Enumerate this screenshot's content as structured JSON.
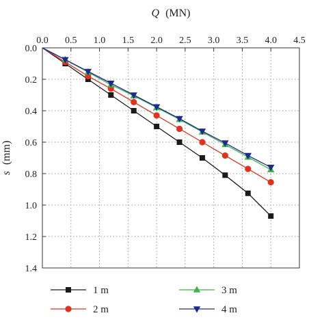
{
  "chart_data": {
    "type": "line",
    "xlabel_var": "Q",
    "xlabel_unit": "(MN)",
    "ylabel_var": "s",
    "ylabel_unit": "(mm)",
    "x_axis_position": "top",
    "y_axis_inverted": true,
    "xlim": [
      0,
      4.5
    ],
    "ylim": [
      0,
      1.4
    ],
    "xticks": [
      "0.0",
      "0.5",
      "1.0",
      "1.5",
      "2.0",
      "2.5",
      "3.0",
      "3.5",
      "4.0",
      "4.5"
    ],
    "yticks": [
      "0.0",
      "0.2",
      "0.4",
      "0.6",
      "0.8",
      "1.0",
      "1.2",
      "1.4"
    ],
    "grid": true,
    "legend_placement": "bottom",
    "x": [
      0,
      0.4,
      0.8,
      1.2,
      1.6,
      2.0,
      2.4,
      2.8,
      3.2,
      3.6,
      4.0
    ],
    "series": [
      {
        "name": "1 m",
        "marker": "square",
        "color": "#1a1a1a",
        "values": [
          0,
          0.1,
          0.2,
          0.3,
          0.4,
          0.5,
          0.6,
          0.7,
          0.81,
          0.925,
          1.07
        ]
      },
      {
        "name": "2 m",
        "marker": "circle",
        "color": "#e0321e",
        "values": [
          0,
          0.09,
          0.18,
          0.26,
          0.345,
          0.43,
          0.515,
          0.6,
          0.685,
          0.77,
          0.855
        ]
      },
      {
        "name": "3 m",
        "marker": "triangle-up",
        "color": "#3db54a",
        "values": [
          0,
          0.075,
          0.155,
          0.235,
          0.305,
          0.38,
          0.455,
          0.535,
          0.615,
          0.695,
          0.775
        ]
      },
      {
        "name": "4 m",
        "marker": "triangle-down",
        "color": "#1f2a8f",
        "values": [
          0,
          0.075,
          0.15,
          0.225,
          0.3,
          0.375,
          0.45,
          0.53,
          0.605,
          0.685,
          0.76
        ]
      }
    ]
  }
}
